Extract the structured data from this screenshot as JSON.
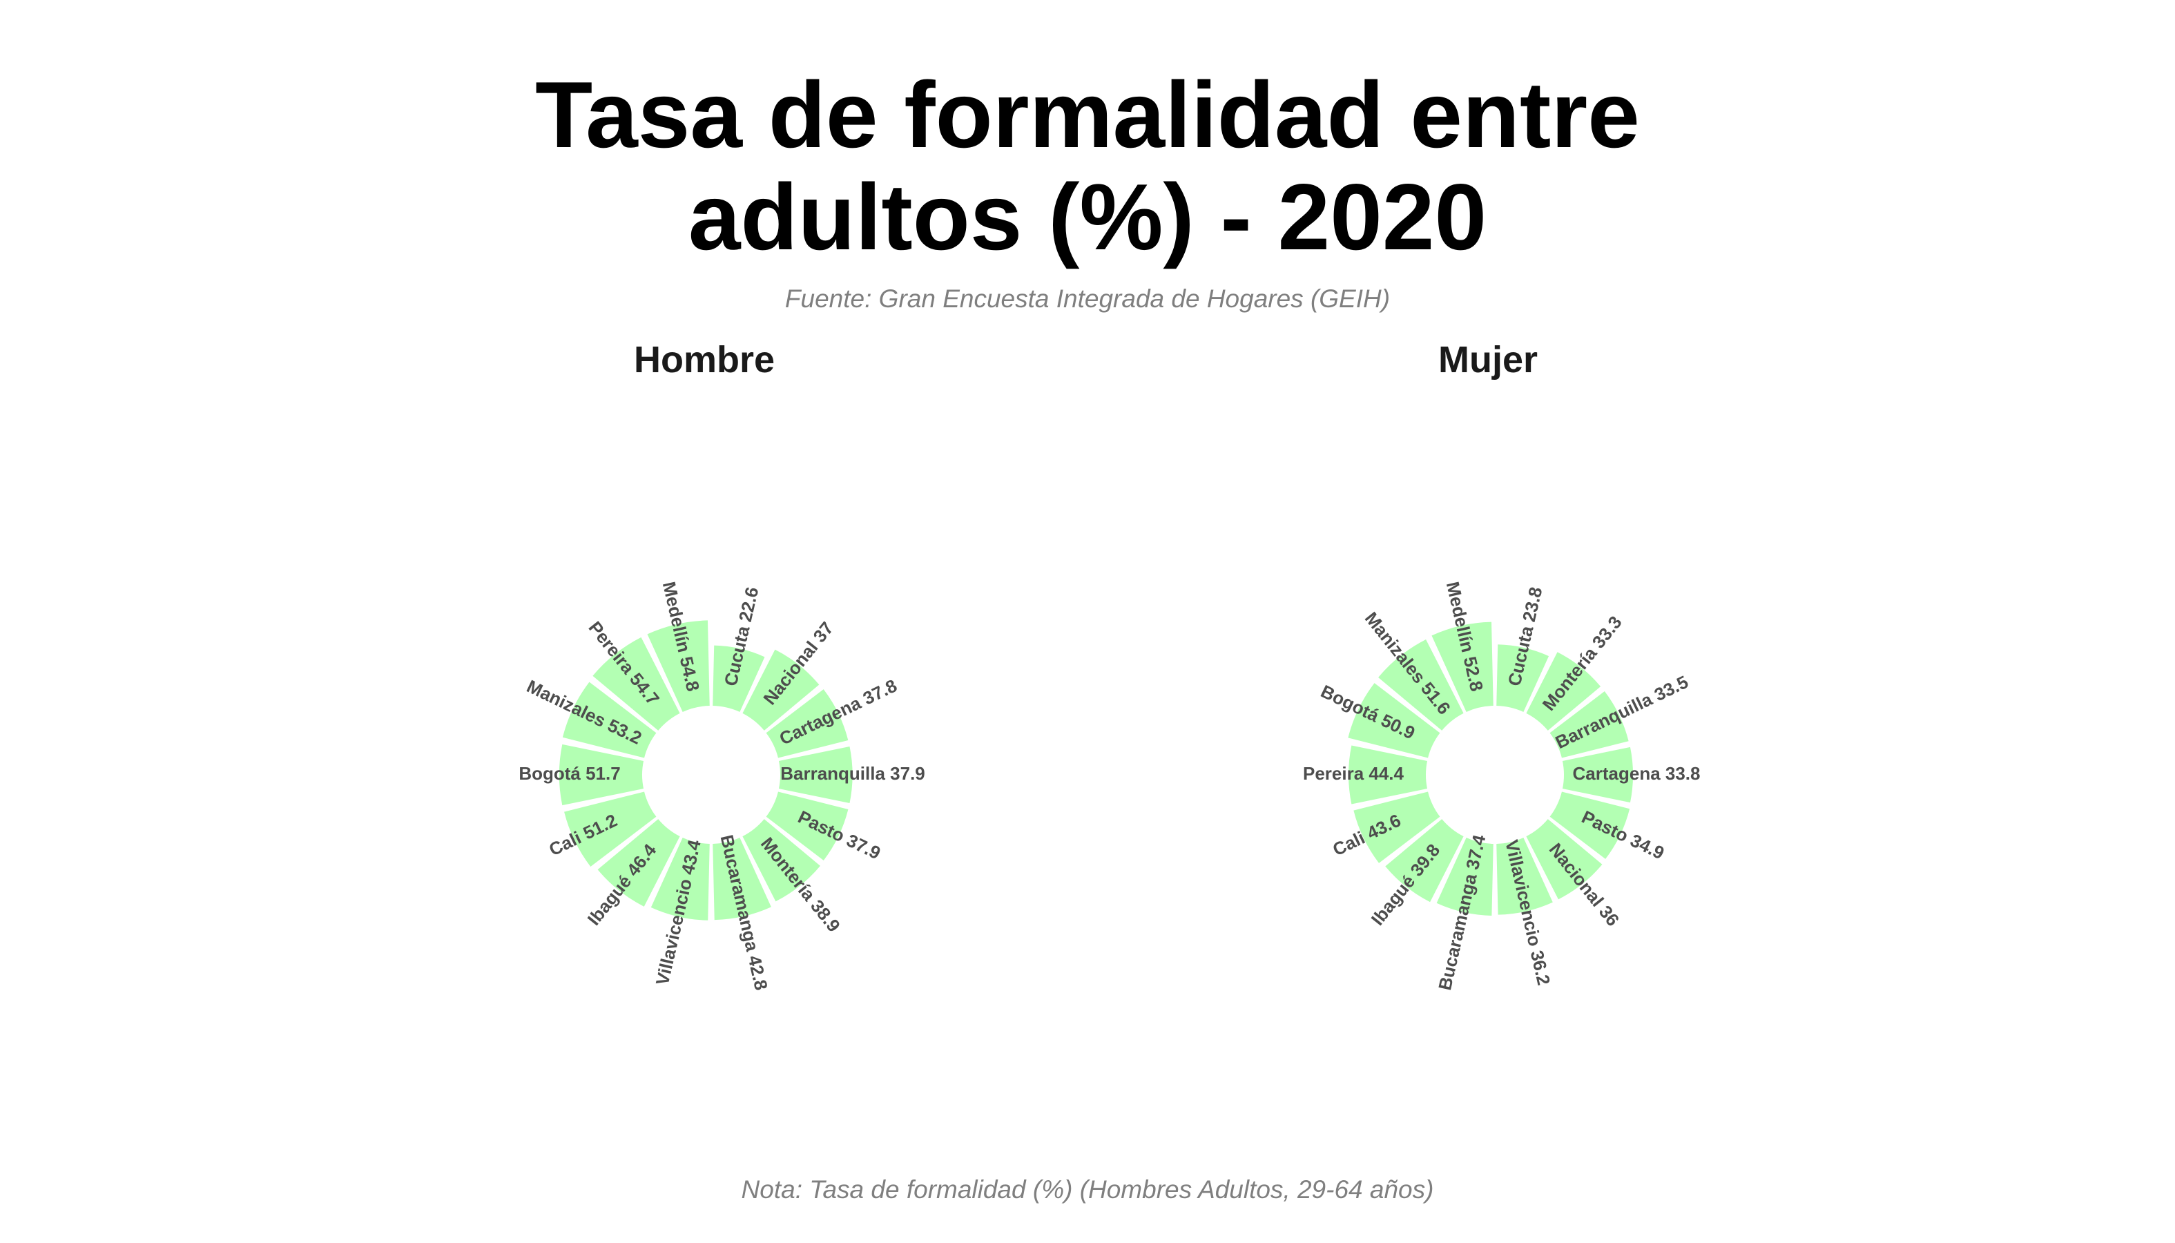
{
  "title_line1": "Tasa de formalidad entre",
  "title_line2": "adultos (%) - 2020",
  "subtitle": "Fuente: Gran Encuesta Integrada de Hogares (GEIH)",
  "note": "Nota: Tasa de formalidad (%) (Hombres Adultos, 29-64 años)",
  "bar_color": "#b3ffb3",
  "chart_data": [
    {
      "type": "bar",
      "polar": true,
      "panel": "Hombre",
      "categories": [
        "Cucuta",
        "Nacional",
        "Cartagena",
        "Barranquilla",
        "Pasto",
        "Montería",
        "Bucaramanga",
        "Villavicencio",
        "Ibagué",
        "Cali",
        "Bogotá",
        "Manizales",
        "Pereira",
        "Medellín"
      ],
      "values": [
        22.6,
        37,
        37.8,
        37.9,
        37.9,
        38.9,
        42.8,
        43.4,
        46.4,
        51.2,
        51.7,
        53.2,
        54.7,
        54.8
      ],
      "labels": [
        "Cucuta 22.6",
        "Nacional 37",
        "Cartagena 37.8",
        "Barranquilla 37.9",
        "Pasto 37.9",
        "Montería 38.9",
        "Bucaramanga 42.8",
        "Villavicencio 43.4",
        "Ibagué 46.4",
        "Cali 51.2",
        "Bogotá 51.7",
        "Manizales 53.2",
        "Pereira 54.7",
        "Medellín 54.8"
      ]
    },
    {
      "type": "bar",
      "polar": true,
      "panel": "Mujer",
      "categories": [
        "Cucuta",
        "Montería",
        "Barranquilla",
        "Cartagena",
        "Pasto",
        "Nacional",
        "Villavicencio",
        "Bucaramanga",
        "Ibagué",
        "Cali",
        "Pereira",
        "Bogotá",
        "Manizales",
        "Medellín"
      ],
      "values": [
        23.8,
        33.3,
        33.5,
        33.8,
        34.9,
        36,
        36.2,
        37.4,
        39.8,
        43.6,
        44.4,
        50.9,
        51.6,
        52.8
      ],
      "labels": [
        "Cucuta 23.8",
        "Montería 33.3",
        "Barranquilla 33.5",
        "Cartagena 33.8",
        "Pasto 34.9",
        "Nacional 36",
        "Villavicencio 36.2",
        "Bucaramanga 37.4",
        "Ibagué 39.8",
        "Cali 43.6",
        "Pereira 44.4",
        "Bogotá 50.9",
        "Manizales 51.6",
        "Medellín 52.8"
      ]
    }
  ]
}
